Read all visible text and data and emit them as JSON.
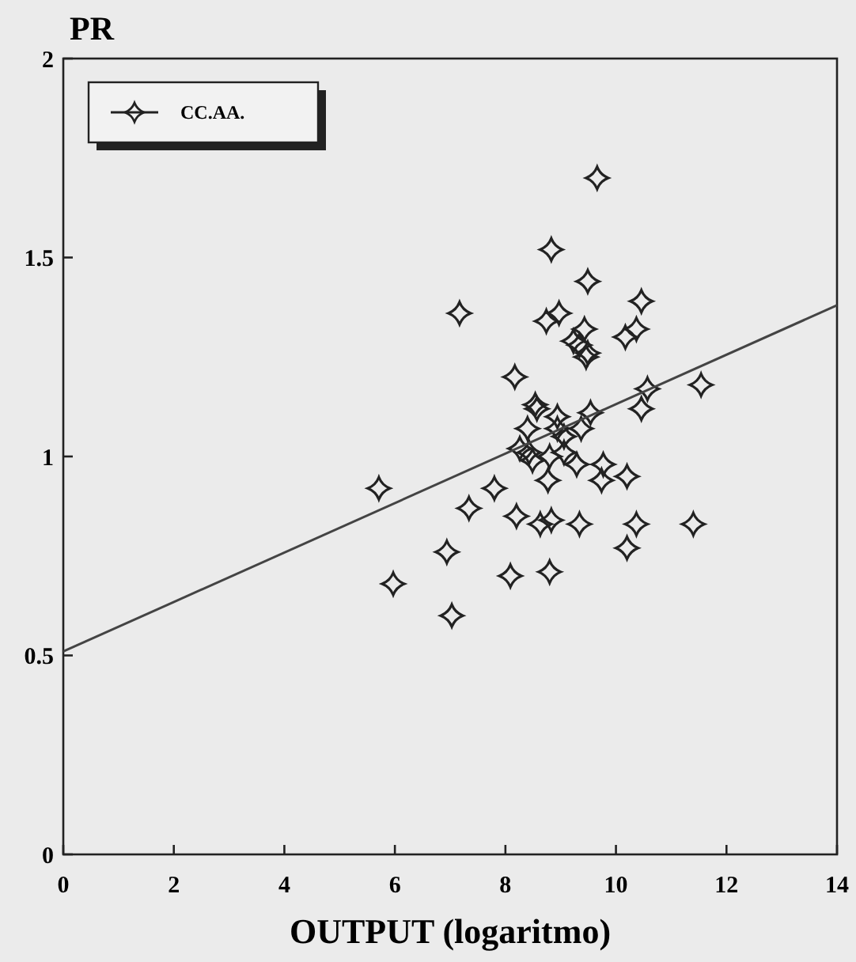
{
  "chart_data": {
    "type": "scatter",
    "xlabel": "OUTPUT (logaritmo)",
    "ylabel": "PR",
    "xlim": [
      0,
      14
    ],
    "xticks": [
      0,
      2,
      4,
      6,
      8,
      10,
      12,
      14
    ],
    "ylim": [
      0,
      2
    ],
    "yticks": [
      0,
      {
        "value": 0.5,
        "label": "0.5"
      },
      1,
      {
        "value": 1.5,
        "label": "1.5"
      },
      2
    ],
    "grid": false,
    "legend": "top left",
    "series": [
      {
        "name": "CC.AA.",
        "color": "#222222",
        "marker": "cross",
        "x": [
          5.71,
          5.97,
          7.17,
          9.66,
          8.83,
          9.49,
          10.46,
          8.74,
          8.97,
          9.43,
          9.23,
          9.34,
          9.46,
          9.49,
          10.37,
          10.17,
          8.17,
          10.57,
          10.46,
          11.54,
          8.54,
          8.57,
          8.94,
          9.54,
          8.4,
          9.06,
          8.94,
          9.37,
          8.26,
          8.43,
          8.49,
          8.8,
          9.06,
          9.29,
          9.77,
          9.74,
          10.2,
          8.77,
          7.8,
          7.34,
          8.2,
          8.63,
          8.83,
          9.34,
          10.37,
          11.4,
          10.2,
          6.94,
          8.09,
          8.8,
          7.03
        ],
        "values": [
          0.92,
          0.68,
          1.36,
          1.7,
          1.52,
          1.44,
          1.39,
          1.34,
          1.36,
          1.32,
          1.29,
          1.28,
          1.25,
          1.26,
          1.32,
          1.3,
          1.2,
          1.17,
          1.12,
          1.18,
          1.13,
          1.12,
          1.1,
          1.11,
          1.07,
          1.05,
          1.07,
          1.07,
          1.02,
          1.01,
          0.99,
          1.0,
          1.01,
          0.98,
          0.98,
          0.94,
          0.95,
          0.94,
          0.92,
          0.87,
          0.85,
          0.83,
          0.84,
          0.83,
          0.83,
          0.83,
          0.77,
          0.76,
          0.7,
          0.71,
          0.6
        ]
      },
      {
        "type": "line",
        "color": "#444444",
        "x": [
          0,
          14
        ],
        "values": [
          0.51,
          1.38
        ],
        "line_style": "solid",
        "marker": "none"
      }
    ]
  }
}
